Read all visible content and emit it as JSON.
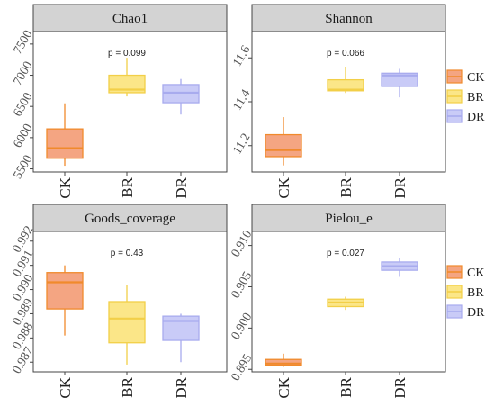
{
  "groups": [
    {
      "key": "CK",
      "fill": "#f4a582",
      "stroke": "#f08a2c"
    },
    {
      "key": "BR",
      "fill": "#fbe688",
      "stroke": "#f2cf48"
    },
    {
      "key": "DR",
      "fill": "#c9cbf7",
      "stroke": "#a8abee"
    }
  ],
  "legend": {
    "items": [
      "CK",
      "BR",
      "DR"
    ]
  },
  "chart_data": [
    {
      "type": "box",
      "title": "Chao1",
      "annotation": "p = 0.099",
      "categories": [
        "CK",
        "BR",
        "DR"
      ],
      "ylim": [
        5450,
        7700
      ],
      "yticks": [
        5500,
        6000,
        6500,
        7000,
        7500
      ],
      "tick_labels": [
        "5500",
        "6000",
        "6500",
        "7000",
        "7500"
      ],
      "boxes": [
        {
          "min": 5550,
          "q1": 5670,
          "median": 5830,
          "q3": 6140,
          "max": 6550
        },
        {
          "min": 6660,
          "q1": 6720,
          "median": 6770,
          "q3": 7000,
          "max": 7280
        },
        {
          "min": 6370,
          "q1": 6560,
          "median": 6720,
          "q3": 6850,
          "max": 6940
        }
      ]
    },
    {
      "type": "box",
      "title": "Shannon",
      "annotation": "p = 0.066",
      "categories": [
        "CK",
        "BR",
        "DR"
      ],
      "ylim": [
        11.08,
        11.72
      ],
      "yticks": [
        11.2,
        11.4,
        11.6
      ],
      "tick_labels": [
        "11.2",
        "11.4",
        "11.6"
      ],
      "boxes": [
        {
          "min": 11.11,
          "q1": 11.15,
          "median": 11.18,
          "q3": 11.25,
          "max": 11.33
        },
        {
          "min": 11.44,
          "q1": 11.45,
          "median": 11.455,
          "q3": 11.5,
          "max": 11.56
        },
        {
          "min": 11.42,
          "q1": 11.47,
          "median": 11.52,
          "q3": 11.53,
          "max": 11.55
        }
      ]
    },
    {
      "type": "box",
      "title": "Goods_coverage",
      "annotation": "p = 0.43",
      "categories": [
        "CK",
        "BR",
        "DR"
      ],
      "ylim": [
        0.9866,
        0.9924
      ],
      "yticks": [
        0.987,
        0.988,
        0.989,
        0.99,
        0.991,
        0.992
      ],
      "tick_labels": [
        "0.987",
        "0.988",
        "0.989",
        "0.990",
        "0.991",
        "0.992"
      ],
      "boxes": [
        {
          "min": 0.9881,
          "q1": 0.9892,
          "median": 0.9903,
          "q3": 0.9907,
          "max": 0.991
        },
        {
          "min": 0.9869,
          "q1": 0.9878,
          "median": 0.9888,
          "q3": 0.9895,
          "max": 0.9902
        },
        {
          "min": 0.987,
          "q1": 0.9879,
          "median": 0.9887,
          "q3": 0.9889,
          "max": 0.989
        }
      ]
    },
    {
      "type": "box",
      "title": "Pielou_e",
      "annotation": "p = 0.027",
      "categories": [
        "CK",
        "BR",
        "DR"
      ],
      "ylim": [
        0.8947,
        0.9117
      ],
      "yticks": [
        0.895,
        0.9,
        0.905,
        0.91
      ],
      "tick_labels": [
        "0.895",
        "0.900",
        "0.905",
        "0.910"
      ],
      "boxes": [
        {
          "min": 0.8953,
          "q1": 0.8955,
          "median": 0.8957,
          "q3": 0.8962,
          "max": 0.8969
        },
        {
          "min": 0.9022,
          "q1": 0.9026,
          "median": 0.9031,
          "q3": 0.9035,
          "max": 0.9038
        },
        {
          "min": 0.9062,
          "q1": 0.907,
          "median": 0.9075,
          "q3": 0.908,
          "max": 0.9085
        }
      ]
    }
  ]
}
